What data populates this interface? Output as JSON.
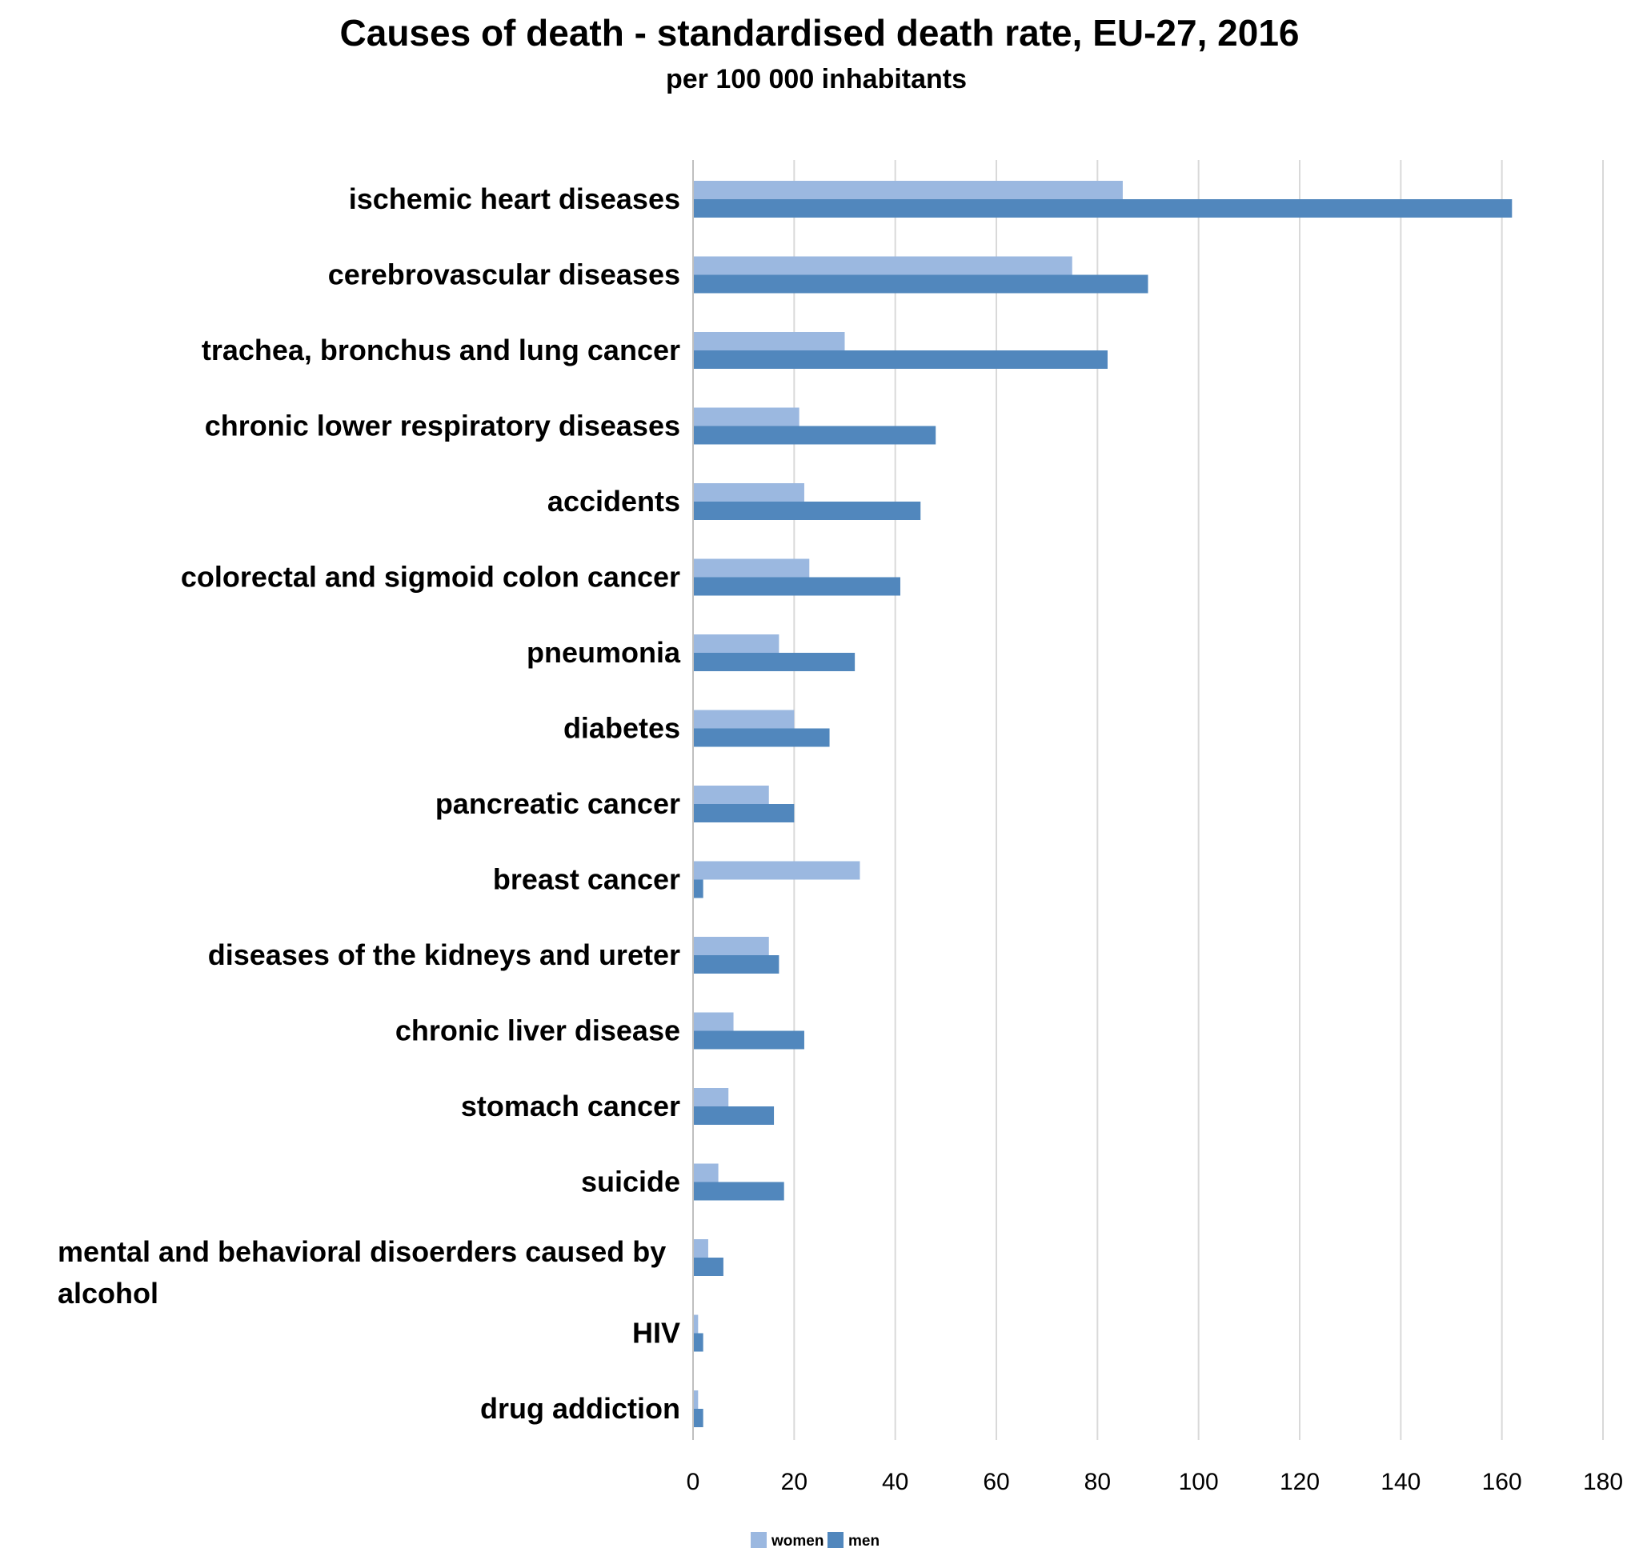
{
  "chart_data": {
    "type": "bar",
    "orientation": "horizontal",
    "title": "Causes of death - standardised death rate, EU-27, 2016",
    "subtitle": "per 100 000 inhabitants",
    "xlabel": "",
    "ylabel": "",
    "xlim": [
      0,
      180
    ],
    "x_ticks": [
      "0",
      "20",
      "40",
      "60",
      "80",
      "100",
      "120",
      "140",
      "160",
      "180"
    ],
    "grid": "vertical",
    "legend_position": "bottom",
    "categories": [
      "ischemic heart diseases",
      "cerebrovascular diseases",
      "trachea, bronchus and lung cancer",
      "chronic lower respiratory diseases",
      "accidents",
      "colorectal and sigmoid colon cancer",
      "pneumonia",
      "diabetes",
      "pancreatic cancer",
      "breast cancer",
      "diseases of the kidneys and ureter",
      "chronic liver disease",
      "stomach cancer",
      "suicide",
      [
        "mental and behavioral disoerders caused by",
        "alcohol"
      ],
      "HIV",
      "drug addiction"
    ],
    "series": [
      {
        "name": "women",
        "color": "#9BB8E0",
        "values": [
          85,
          75,
          30,
          21,
          22,
          23,
          17,
          20,
          15,
          33,
          15,
          8,
          7,
          5,
          3,
          1,
          1
        ]
      },
      {
        "name": "men",
        "color": "#5187BD",
        "values": [
          162,
          90,
          82,
          48,
          45,
          41,
          32,
          27,
          20,
          2,
          17,
          22,
          16,
          18,
          6,
          2,
          2
        ]
      }
    ],
    "colors": {
      "gridline": "#D9D9D9",
      "axis": "#BFBFBF"
    }
  }
}
